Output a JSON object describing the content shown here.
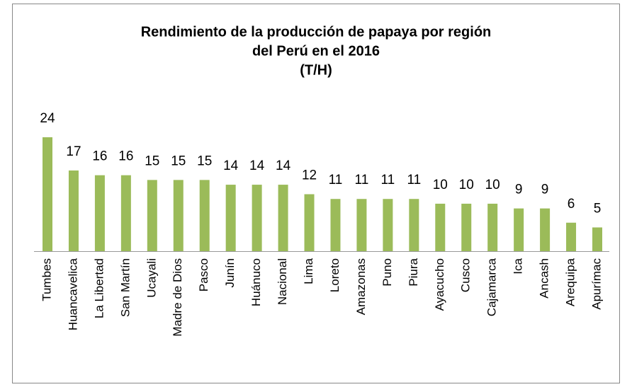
{
  "chart_data": {
    "type": "bar",
    "title": [
      "Rendimiento de la producción de papaya por región",
      "del Perú en el 2016",
      "(T/H)"
    ],
    "categories": [
      "Tumbes",
      "Huancavelica",
      "La Libertad",
      "San Martín",
      "Ucayali",
      "Madre de Dios",
      "Pasco",
      "Junín",
      "Huánuco",
      "Nacional",
      "Lima",
      "Loreto",
      "Amazonas",
      "Puno",
      "Piura",
      "Ayacucho",
      "Cusco",
      "Cajamarca",
      "Ica",
      "Ancash",
      "Arequipa",
      "Apurímac"
    ],
    "values": [
      24,
      17,
      16,
      16,
      15,
      15,
      15,
      14,
      14,
      14,
      12,
      11,
      11,
      11,
      11,
      10,
      10,
      10,
      9,
      9,
      6,
      5
    ],
    "color": "#9bbb59",
    "ylim": [
      0,
      24
    ]
  }
}
